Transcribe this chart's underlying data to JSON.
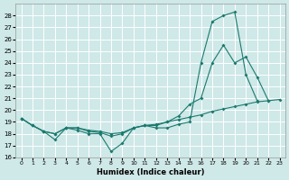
{
  "xlabel": "Humidex (Indice chaleur)",
  "background_color": "#cfe8e8",
  "grid_color": "#ffffff",
  "line_color": "#1a7a6e",
  "xlim": [
    -0.5,
    23.5
  ],
  "ylim": [
    16,
    29
  ],
  "yticks": [
    16,
    17,
    18,
    19,
    20,
    21,
    22,
    23,
    24,
    25,
    26,
    27,
    28
  ],
  "xticks": [
    0,
    1,
    2,
    3,
    4,
    5,
    6,
    7,
    8,
    9,
    10,
    11,
    12,
    13,
    14,
    15,
    16,
    17,
    18,
    19,
    20,
    21,
    22,
    23
  ],
  "line1_x": [
    0,
    1,
    2,
    3,
    4,
    5,
    6,
    7,
    8,
    9,
    10,
    11,
    12,
    13,
    14,
    15,
    16,
    17,
    18,
    19,
    20,
    21,
    22,
    23
  ],
  "line1_y": [
    19.3,
    18.7,
    18.2,
    17.5,
    18.5,
    18.3,
    18.0,
    18.0,
    16.5,
    17.2,
    18.5,
    18.7,
    18.5,
    18.5,
    18.8,
    19.0,
    24.0,
    27.5,
    28.0,
    28.3,
    23.0,
    20.8,
    null,
    null
  ],
  "line2_x": [
    0,
    1,
    2,
    3,
    4,
    5,
    6,
    7,
    8,
    9,
    10,
    11,
    12,
    13,
    14,
    15,
    16,
    17,
    18,
    19,
    20,
    21,
    22,
    23
  ],
  "line2_y": [
    19.3,
    18.7,
    18.2,
    18.0,
    18.5,
    18.5,
    18.2,
    18.1,
    17.8,
    18.0,
    18.5,
    18.7,
    18.7,
    19.0,
    19.5,
    20.5,
    21.0,
    24.0,
    25.5,
    24.0,
    24.5,
    22.8,
    20.8,
    null
  ],
  "line3_x": [
    0,
    1,
    2,
    3,
    4,
    5,
    6,
    7,
    8,
    9,
    10,
    11,
    12,
    13,
    14,
    15,
    16,
    17,
    18,
    19,
    20,
    21,
    22,
    23
  ],
  "line3_y": [
    19.3,
    18.7,
    18.2,
    18.0,
    18.5,
    18.5,
    18.3,
    18.2,
    18.0,
    18.1,
    18.5,
    18.7,
    18.8,
    19.0,
    19.2,
    19.4,
    19.6,
    19.9,
    20.1,
    20.3,
    20.5,
    20.7,
    20.8,
    20.9
  ]
}
